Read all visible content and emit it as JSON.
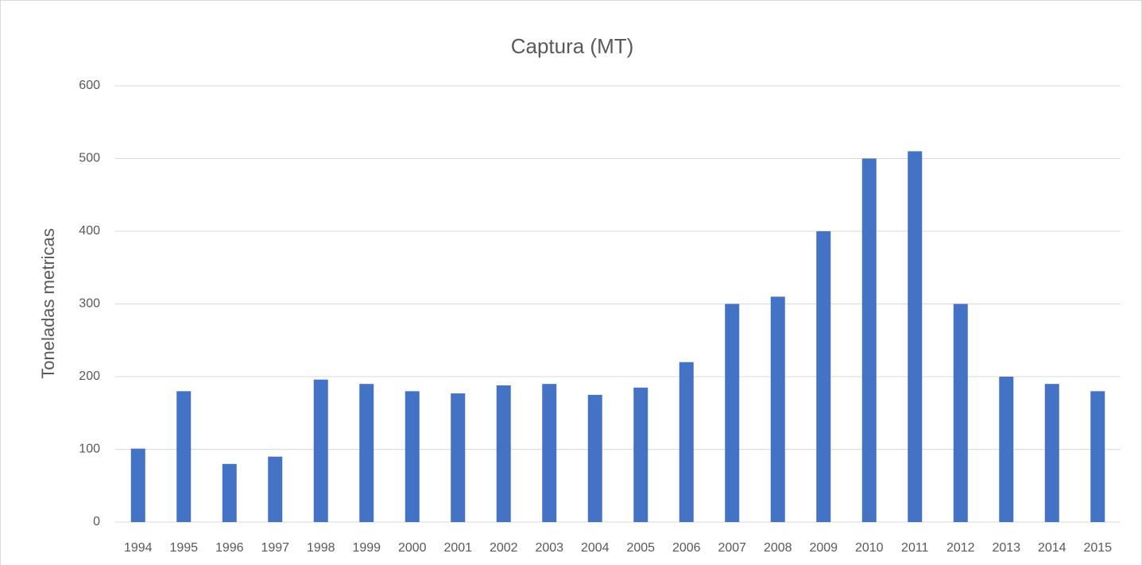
{
  "chart_data": {
    "type": "bar",
    "title": "Captura (MT)",
    "y_label": "Toneladas metricas",
    "categories": [
      "1994",
      "1995",
      "1996",
      "1997",
      "1998",
      "1999",
      "2000",
      "2001",
      "2002",
      "2003",
      "2004",
      "2005",
      "2006",
      "2007",
      "2008",
      "2009",
      "2010",
      "2011",
      "2012",
      "2013",
      "2014",
      "2015"
    ],
    "values": [
      101,
      180,
      80,
      90,
      196,
      190,
      180,
      177,
      188,
      190,
      175,
      185,
      220,
      300,
      310,
      400,
      500,
      510,
      300,
      200,
      190,
      180
    ],
    "color": "#4472c4",
    "ylim": [
      0,
      600
    ],
    "yticks": [
      0,
      100,
      200,
      300,
      400,
      500,
      600
    ],
    "grid": true
  }
}
